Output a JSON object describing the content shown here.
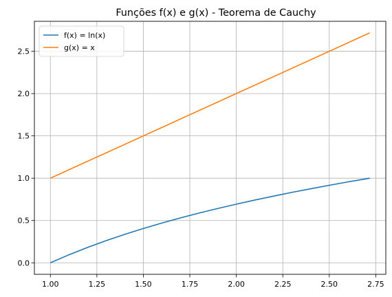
{
  "chart_data": {
    "type": "line",
    "title": "Funções f(x) e g(x) - Teorema de Cauchy",
    "xlabel": "",
    "ylabel": "",
    "xlim": [
      0.914,
      2.804
    ],
    "ylim": [
      -0.136,
      2.854
    ],
    "grid": true,
    "legend_position": "top-left",
    "x_ticks": [
      1.0,
      1.25,
      1.5,
      1.75,
      2.0,
      2.25,
      2.5,
      2.75
    ],
    "x_tick_labels": [
      "1.00",
      "1.25",
      "1.50",
      "1.75",
      "2.00",
      "2.25",
      "2.50",
      "2.75"
    ],
    "y_ticks": [
      0.0,
      0.5,
      1.0,
      1.5,
      2.0,
      2.5
    ],
    "y_tick_labels": [
      "0.0",
      "0.5",
      "1.0",
      "1.5",
      "2.0",
      "2.5"
    ],
    "series": [
      {
        "name": "f(x) = ln(x)",
        "color": "#1f77b4",
        "x": [
          1.0,
          1.1,
          1.2,
          1.3,
          1.4,
          1.5,
          1.6,
          1.7,
          1.8,
          1.9,
          2.0,
          2.1,
          2.2,
          2.3,
          2.4,
          2.5,
          2.6,
          2.7,
          2.718
        ],
        "y": [
          0.0,
          0.095,
          0.182,
          0.262,
          0.336,
          0.405,
          0.47,
          0.531,
          0.588,
          0.642,
          0.693,
          0.742,
          0.788,
          0.833,
          0.875,
          0.916,
          0.956,
          0.993,
          1.0
        ]
      },
      {
        "name": "g(x) = x",
        "color": "#ff7f0e",
        "x": [
          1.0,
          2.718
        ],
        "y": [
          1.0,
          2.718
        ]
      }
    ]
  }
}
